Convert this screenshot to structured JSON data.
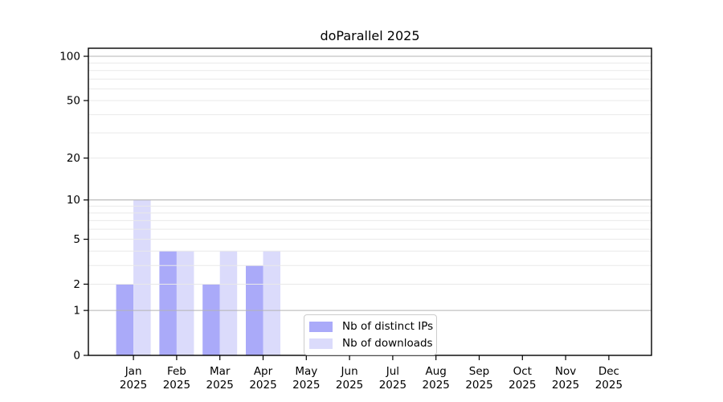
{
  "title": "doParallel 2025",
  "chart_data": {
    "type": "bar",
    "scale": "log1p",
    "title": "doParallel 2025",
    "x_year": "2025",
    "categories": [
      "Jan",
      "Feb",
      "Mar",
      "Apr",
      "May",
      "Jun",
      "Jul",
      "Aug",
      "Sep",
      "Oct",
      "Nov",
      "Dec"
    ],
    "series": [
      {
        "name": "Nb of distinct IPs",
        "color": "#aaaaf9",
        "values": [
          2,
          4,
          2,
          3,
          0,
          0,
          0,
          0,
          0,
          0,
          0,
          0
        ]
      },
      {
        "name": "Nb of downloads",
        "color": "#dbdbfb",
        "values": [
          10,
          4,
          4,
          4,
          0,
          0,
          0,
          0,
          0,
          0,
          0,
          0
        ]
      }
    ],
    "yticks": [
      0,
      1,
      2,
      5,
      10,
      20,
      50,
      100
    ],
    "ylim": [
      0,
      113
    ],
    "grid": {
      "major_values": [
        1,
        10,
        100
      ],
      "minor_values": [
        2,
        3,
        4,
        5,
        6,
        7,
        8,
        9,
        20,
        30,
        40,
        50,
        60,
        70,
        80,
        90
      ]
    },
    "legend_position": "inside-lower-center-left"
  },
  "colors": {
    "grid_major": "#b3b3b3",
    "grid_minor": "#e9e9e9",
    "axis": "#000000",
    "text": "#000000",
    "legend_border": "#cccccc",
    "background": "#ffffff"
  }
}
